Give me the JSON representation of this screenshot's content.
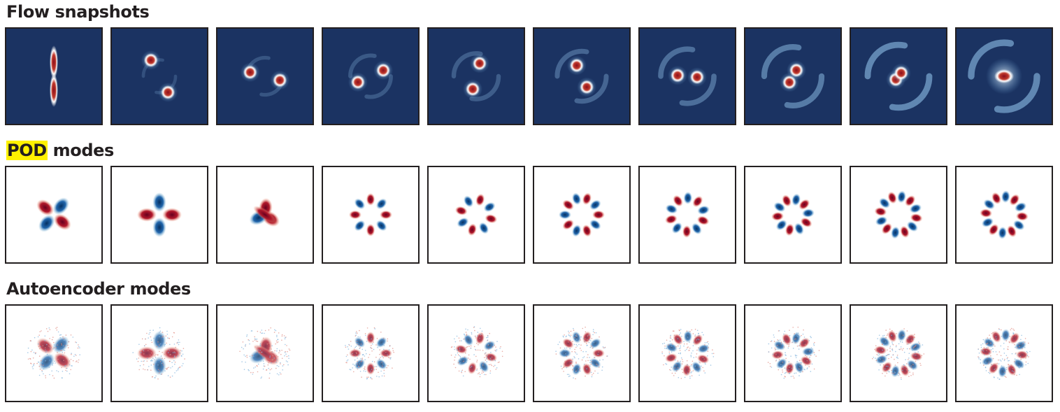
{
  "panels": [
    {
      "id": "flow",
      "title_parts": [
        {
          "text": "Flow snapshots",
          "highlight": false
        }
      ],
      "background": "#1b3362",
      "count": 10
    },
    {
      "id": "pod",
      "title_parts": [
        {
          "text": "POD",
          "highlight": true
        },
        {
          "text": " modes",
          "highlight": false
        }
      ],
      "background": "#ffffff",
      "count": 10
    },
    {
      "id": "ae",
      "title_parts": [
        {
          "text": "Autoencoder modes",
          "highlight": false
        }
      ],
      "background": "#ffffff",
      "count": 10
    }
  ],
  "colors": {
    "highlight": "#fff200",
    "tile_border": "#231f20",
    "snapshot_background": "#1b3362",
    "positive": "#b2182b",
    "negative": "#2166ac"
  }
}
